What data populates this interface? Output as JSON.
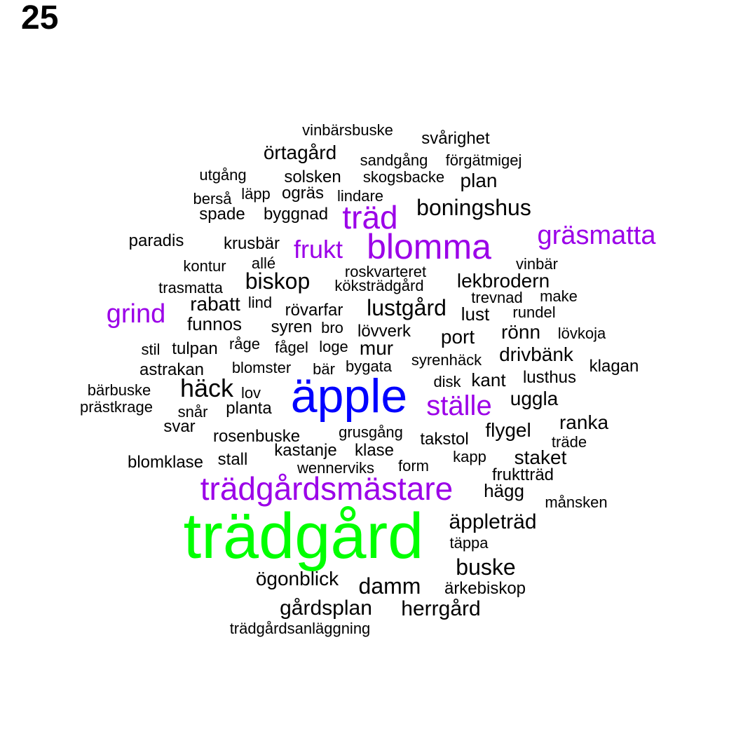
{
  "page_number": "25",
  "colors": {
    "black": "#000000",
    "purple": "#9b00e8",
    "blue": "#0000ff",
    "green": "#00ff00"
  },
  "words": [
    {
      "text": "trädgård",
      "color": "green"
    },
    {
      "text": "äpple",
      "color": "blue"
    },
    {
      "text": "trädgårdsmästare",
      "color": "purple"
    },
    {
      "text": "blomma",
      "color": "purple"
    },
    {
      "text": "träd",
      "color": "purple"
    },
    {
      "text": "gräsmatta",
      "color": "purple"
    },
    {
      "text": "ställe",
      "color": "purple"
    },
    {
      "text": "grind",
      "color": "purple"
    },
    {
      "text": "frukt",
      "color": "purple"
    },
    {
      "text": "vinbärsbuske",
      "color": "black"
    },
    {
      "text": "svårighet",
      "color": "black"
    },
    {
      "text": "örtagård",
      "color": "black"
    },
    {
      "text": "sandgång",
      "color": "black"
    },
    {
      "text": "förgätmigej",
      "color": "black"
    },
    {
      "text": "utgång",
      "color": "black"
    },
    {
      "text": "solsken",
      "color": "black"
    },
    {
      "text": "skogsbacke",
      "color": "black"
    },
    {
      "text": "plan",
      "color": "black"
    },
    {
      "text": "berså",
      "color": "black"
    },
    {
      "text": "läpp",
      "color": "black"
    },
    {
      "text": "ogräs",
      "color": "black"
    },
    {
      "text": "lindare",
      "color": "black"
    },
    {
      "text": "boningshus",
      "color": "black"
    },
    {
      "text": "spade",
      "color": "black"
    },
    {
      "text": "byggnad",
      "color": "black"
    },
    {
      "text": "paradis",
      "color": "black"
    },
    {
      "text": "krusbär",
      "color": "black"
    },
    {
      "text": "kontur",
      "color": "black"
    },
    {
      "text": "allé",
      "color": "black"
    },
    {
      "text": "roskvarteret",
      "color": "black"
    },
    {
      "text": "vinbär",
      "color": "black"
    },
    {
      "text": "biskop",
      "color": "black"
    },
    {
      "text": "köksträdgård",
      "color": "black"
    },
    {
      "text": "lekbrodern",
      "color": "black"
    },
    {
      "text": "trasmatta",
      "color": "black"
    },
    {
      "text": "trevnad",
      "color": "black"
    },
    {
      "text": "make",
      "color": "black"
    },
    {
      "text": "rabatt",
      "color": "black"
    },
    {
      "text": "lind",
      "color": "black"
    },
    {
      "text": "lustgård",
      "color": "black"
    },
    {
      "text": "rövarfar",
      "color": "black"
    },
    {
      "text": "lust",
      "color": "black"
    },
    {
      "text": "rundel",
      "color": "black"
    },
    {
      "text": "funnos",
      "color": "black"
    },
    {
      "text": "syren",
      "color": "black"
    },
    {
      "text": "bro",
      "color": "black"
    },
    {
      "text": "lövverk",
      "color": "black"
    },
    {
      "text": "rönn",
      "color": "black"
    },
    {
      "text": "lövkoja",
      "color": "black"
    },
    {
      "text": "port",
      "color": "black"
    },
    {
      "text": "stil",
      "color": "black"
    },
    {
      "text": "tulpan",
      "color": "black"
    },
    {
      "text": "råge",
      "color": "black"
    },
    {
      "text": "fågel",
      "color": "black"
    },
    {
      "text": "loge",
      "color": "black"
    },
    {
      "text": "mur",
      "color": "black"
    },
    {
      "text": "drivbänk",
      "color": "black"
    },
    {
      "text": "astrakan",
      "color": "black"
    },
    {
      "text": "blomster",
      "color": "black"
    },
    {
      "text": "bär",
      "color": "black"
    },
    {
      "text": "bygata",
      "color": "black"
    },
    {
      "text": "syrenhäck",
      "color": "black"
    },
    {
      "text": "klagan",
      "color": "black"
    },
    {
      "text": "bärbuske",
      "color": "black"
    },
    {
      "text": "häck",
      "color": "black"
    },
    {
      "text": "lov",
      "color": "black"
    },
    {
      "text": "disk",
      "color": "black"
    },
    {
      "text": "kant",
      "color": "black"
    },
    {
      "text": "lusthus",
      "color": "black"
    },
    {
      "text": "prästkrage",
      "color": "black"
    },
    {
      "text": "snår",
      "color": "black"
    },
    {
      "text": "planta",
      "color": "black"
    },
    {
      "text": "uggla",
      "color": "black"
    },
    {
      "text": "svar",
      "color": "black"
    },
    {
      "text": "ranka",
      "color": "black"
    },
    {
      "text": "rosenbuske",
      "color": "black"
    },
    {
      "text": "grusgång",
      "color": "black"
    },
    {
      "text": "takstol",
      "color": "black"
    },
    {
      "text": "flygel",
      "color": "black"
    },
    {
      "text": "träde",
      "color": "black"
    },
    {
      "text": "kastanje",
      "color": "black"
    },
    {
      "text": "klase",
      "color": "black"
    },
    {
      "text": "blomklase",
      "color": "black"
    },
    {
      "text": "stall",
      "color": "black"
    },
    {
      "text": "kapp",
      "color": "black"
    },
    {
      "text": "staket",
      "color": "black"
    },
    {
      "text": "wennerviks",
      "color": "black"
    },
    {
      "text": "form",
      "color": "black"
    },
    {
      "text": "fruktträd",
      "color": "black"
    },
    {
      "text": "hägg",
      "color": "black"
    },
    {
      "text": "månsken",
      "color": "black"
    },
    {
      "text": "äppleträd",
      "color": "black"
    },
    {
      "text": "täppa",
      "color": "black"
    },
    {
      "text": "buske",
      "color": "black"
    },
    {
      "text": "ögonblick",
      "color": "black"
    },
    {
      "text": "damm",
      "color": "black"
    },
    {
      "text": "ärkebiskop",
      "color": "black"
    },
    {
      "text": "gårdsplan",
      "color": "black"
    },
    {
      "text": "herrgård",
      "color": "black"
    },
    {
      "text": "trädgårdsanläggning",
      "color": "black"
    }
  ]
}
